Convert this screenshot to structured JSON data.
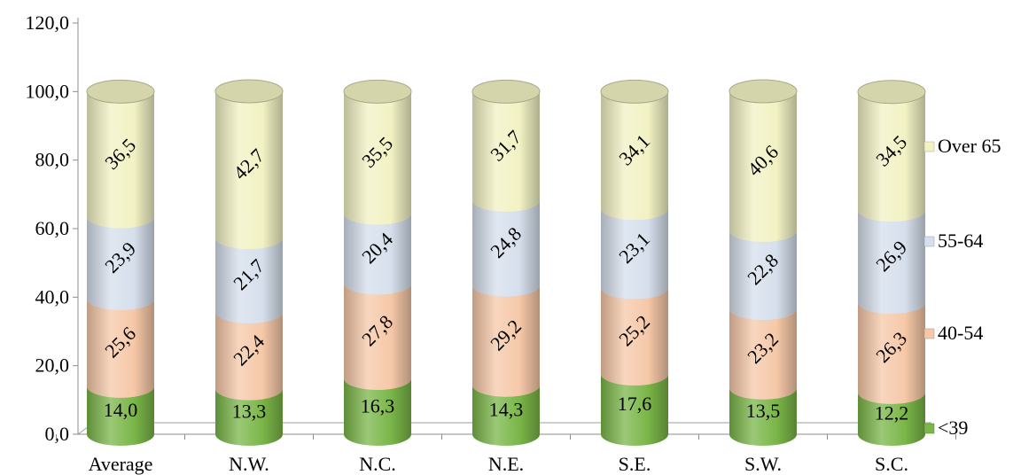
{
  "chart_data": {
    "type": "bar",
    "stacked": true,
    "style": "3d-cylinder",
    "categories": [
      "Average",
      "N.W.",
      "N.C.",
      "N.E.",
      "S.E.",
      "S.W.",
      "S.C."
    ],
    "series": [
      {
        "name": "<39",
        "color": "#7ab648",
        "values": [
          14.0,
          13.3,
          16.3,
          14.3,
          17.6,
          13.5,
          12.2
        ],
        "labels": [
          "14,0",
          "13,3",
          "16,3",
          "14,3",
          "17,6",
          "13,5",
          "12,2"
        ]
      },
      {
        "name": "40-54",
        "color": "#f6c8a8",
        "values": [
          25.6,
          22.4,
          27.8,
          29.2,
          25.2,
          23.2,
          26.3
        ],
        "labels": [
          "25,6",
          "22,4",
          "27,8",
          "29,2",
          "25,2",
          "23,2",
          "26,3"
        ]
      },
      {
        "name": "55-64",
        "color": "#d6dfec",
        "values": [
          23.9,
          21.7,
          20.4,
          24.8,
          23.1,
          22.8,
          26.9
        ],
        "labels": [
          "23,9",
          "21,7",
          "20,4",
          "24,8",
          "23,1",
          "22,8",
          "26,9"
        ]
      },
      {
        "name": "Over 65",
        "color": "#f2f2c4",
        "values": [
          36.5,
          42.7,
          35.5,
          31.7,
          34.1,
          40.6,
          34.5
        ],
        "labels": [
          "36,5",
          "42,7",
          "35,5",
          "31,7",
          "34,1",
          "40,6",
          "34,5"
        ]
      }
    ],
    "yticks": [
      "0,0",
      "20,0",
      "40,0",
      "60,0",
      "80,0",
      "100,0",
      "120,0"
    ],
    "ylim": [
      0,
      120
    ],
    "title": "",
    "xlabel": "",
    "ylabel": "",
    "legend_position": "right",
    "grid": false
  }
}
